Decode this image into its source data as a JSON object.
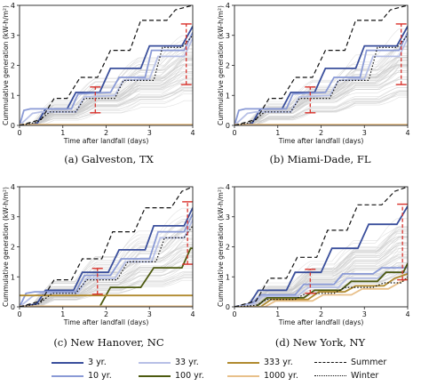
{
  "panels": [
    {
      "caption": "(a) Galveston, TX",
      "ylabel": "Cummulative generation (kW-h/m²)",
      "xlabel": "Time after landfall (days)",
      "chart_data": {
        "type": "line",
        "xlim": [
          0,
          4
        ],
        "ylim": [
          0,
          4
        ],
        "xticks": [
          "0",
          "1",
          "2",
          "3",
          "4"
        ],
        "yticks": [
          "0",
          "1",
          "2",
          "3",
          "4"
        ],
        "series": [
          {
            "name": "3 yr.",
            "style": "solid",
            "color": "#3a4f9c",
            "x": [
              0,
              0.4,
              0.6,
              1.1,
              1.3,
              1.85,
              2.1,
              2.8,
              3.0,
              3.75,
              4.0
            ],
            "y": [
              0,
              0.05,
              0.55,
              0.55,
              1.1,
              1.1,
              1.9,
              1.9,
              2.65,
              2.65,
              3.3
            ]
          },
          {
            "name": "10 yr.",
            "style": "solid",
            "color": "#8a9ad6",
            "x": [
              0,
              0.1,
              0.25,
              1.2,
              1.35,
              2.1,
              2.3,
              2.9,
              3.05,
              3.8,
              4.0
            ],
            "y": [
              0,
              0.5,
              0.55,
              0.55,
              1.05,
              1.1,
              1.6,
              1.6,
              2.5,
              2.5,
              3.1
            ]
          },
          {
            "name": "33 yr.",
            "style": "solid",
            "color": "#b7c0e6",
            "x": [
              0,
              0.3,
              0.5,
              1.3,
              1.5,
              2.2,
              2.4,
              3.0,
              3.2,
              3.8,
              4.0
            ],
            "y": [
              0,
              0.4,
              0.45,
              0.45,
              0.95,
              1.0,
              1.5,
              1.55,
              2.3,
              2.3,
              2.9
            ]
          },
          {
            "name": "1000 yr.",
            "style": "solid",
            "color": "#e8c08a",
            "x": [
              0,
              4.0
            ],
            "y": [
              0.03,
              0.03
            ]
          },
          {
            "name": "Summer",
            "style": "dashed",
            "color": "#111111",
            "x": [
              0,
              0.5,
              0.8,
              1.1,
              1.4,
              1.8,
              2.1,
              2.55,
              2.8,
              3.4,
              3.6,
              4.0
            ],
            "y": [
              0,
              0.2,
              0.9,
              0.9,
              1.6,
              1.6,
              2.5,
              2.5,
              3.5,
              3.5,
              3.85,
              4.0
            ]
          },
          {
            "name": "Winter",
            "style": "dotted",
            "color": "#111111",
            "x": [
              0,
              0.4,
              0.7,
              1.3,
              1.5,
              2.2,
              2.4,
              3.1,
              3.3,
              3.75,
              4.0
            ],
            "y": [
              0,
              0.1,
              0.45,
              0.45,
              0.9,
              0.9,
              1.5,
              1.5,
              2.6,
              2.6,
              3.0
            ]
          }
        ],
        "error_bars": [
          {
            "x": 1.75,
            "y_low": 0.42,
            "y_high": 1.28
          },
          {
            "x": 3.85,
            "y_low": 1.36,
            "y_high": 3.38
          }
        ]
      }
    },
    {
      "caption": "(b) Miami-Dade, FL",
      "ylabel": "Cummulative generation (kW-h/m²)",
      "xlabel": "Time after landfall (days)",
      "chart_data": {
        "type": "line",
        "xlim": [
          0,
          4
        ],
        "ylim": [
          0,
          4
        ],
        "xticks": [
          "0",
          "1",
          "2",
          "3",
          "4"
        ],
        "yticks": [
          "0",
          "1",
          "2",
          "3",
          "4"
        ],
        "series": [
          {
            "name": "3 yr.",
            "style": "solid",
            "color": "#3a4f9c",
            "x": [
              0,
              0.4,
              0.6,
              1.1,
              1.3,
              1.85,
              2.1,
              2.8,
              3.0,
              3.75,
              4.0
            ],
            "y": [
              0,
              0.05,
              0.55,
              0.55,
              1.1,
              1.1,
              1.9,
              1.9,
              2.65,
              2.65,
              3.3
            ]
          },
          {
            "name": "10 yr.",
            "style": "solid",
            "color": "#8a9ad6",
            "x": [
              0,
              0.1,
              0.25,
              1.2,
              1.35,
              2.1,
              2.3,
              2.9,
              3.05,
              3.8,
              4.0
            ],
            "y": [
              0,
              0.5,
              0.55,
              0.55,
              1.05,
              1.1,
              1.6,
              1.6,
              2.5,
              2.5,
              3.1
            ]
          },
          {
            "name": "33 yr.",
            "style": "solid",
            "color": "#b7c0e6",
            "x": [
              0,
              0.3,
              0.5,
              1.3,
              1.5,
              2.2,
              2.4,
              3.0,
              3.2,
              3.8,
              4.0
            ],
            "y": [
              0,
              0.4,
              0.45,
              0.45,
              0.95,
              1.0,
              1.5,
              1.55,
              2.3,
              2.3,
              2.9
            ]
          },
          {
            "name": "1000 yr.",
            "style": "solid",
            "color": "#e8c08a",
            "x": [
              0,
              4.0
            ],
            "y": [
              0.03,
              0.03
            ]
          },
          {
            "name": "Summer",
            "style": "dashed",
            "color": "#111111",
            "x": [
              0,
              0.5,
              0.8,
              1.1,
              1.4,
              1.8,
              2.1,
              2.55,
              2.8,
              3.4,
              3.6,
              4.0
            ],
            "y": [
              0,
              0.2,
              0.9,
              0.9,
              1.6,
              1.6,
              2.5,
              2.5,
              3.5,
              3.5,
              3.85,
              4.0
            ]
          },
          {
            "name": "Winter",
            "style": "dotted",
            "color": "#111111",
            "x": [
              0,
              0.4,
              0.7,
              1.3,
              1.5,
              2.2,
              2.4,
              3.1,
              3.3,
              3.75,
              4.0
            ],
            "y": [
              0,
              0.1,
              0.45,
              0.45,
              0.9,
              0.9,
              1.5,
              1.5,
              2.6,
              2.6,
              3.0
            ]
          }
        ],
        "error_bars": [
          {
            "x": 1.75,
            "y_low": 0.42,
            "y_high": 1.28
          },
          {
            "x": 3.85,
            "y_low": 1.36,
            "y_high": 3.38
          }
        ]
      }
    },
    {
      "caption": "(c) New Hanover, NC",
      "ylabel": "Cummulative generation (kW-h/m²)",
      "xlabel": "Time after landfall (days)",
      "chart_data": {
        "type": "line",
        "xlim": [
          0,
          4
        ],
        "ylim": [
          0,
          4
        ],
        "xticks": [
          "0",
          "1",
          "2",
          "3",
          "4"
        ],
        "yticks": [
          "0",
          "1",
          "2",
          "3",
          "4"
        ],
        "series": [
          {
            "name": "3 yr.",
            "style": "solid",
            "color": "#3a4f9c",
            "x": [
              0,
              0.4,
              0.6,
              1.25,
              1.45,
              2.05,
              2.3,
              2.9,
              3.1,
              3.8,
              4.0
            ],
            "y": [
              0,
              0.1,
              0.55,
              0.55,
              1.15,
              1.15,
              1.9,
              1.9,
              2.7,
              2.7,
              3.3
            ]
          },
          {
            "name": "10 yr.",
            "style": "solid",
            "color": "#8a9ad6",
            "x": [
              0,
              0.15,
              0.35,
              1.3,
              1.5,
              2.1,
              2.35,
              3.0,
              3.2,
              3.8,
              4.0
            ],
            "y": [
              0,
              0.45,
              0.5,
              0.5,
              1.05,
              1.05,
              1.6,
              1.6,
              2.5,
              2.5,
              3.1
            ]
          },
          {
            "name": "33 yr.",
            "style": "solid",
            "color": "#b7c0e6",
            "x": [
              0,
              0.3,
              0.5,
              1.35,
              1.55,
              2.2,
              2.45,
              3.05,
              3.25,
              3.8,
              4.0
            ],
            "y": [
              0,
              0.35,
              0.45,
              0.45,
              0.95,
              0.95,
              1.5,
              1.5,
              2.3,
              2.3,
              2.9
            ]
          },
          {
            "name": "100 yr.",
            "style": "solid",
            "color": "#4d5a10",
            "x": [
              0,
              1.85,
              2.1,
              2.8,
              3.1,
              3.75,
              3.95,
              4.0
            ],
            "y": [
              0,
              0,
              0.65,
              0.65,
              1.3,
              1.3,
              1.95,
              1.95
            ]
          },
          {
            "name": "333 yr.",
            "style": "solid",
            "color": "#b08a2e",
            "x": [
              0,
              4.0
            ],
            "y": [
              0.38,
              0.38
            ]
          },
          {
            "name": "1000 yr.",
            "style": "solid",
            "color": "#e8c08a",
            "x": [
              0,
              4.0
            ],
            "y": [
              0.02,
              0.02
            ]
          },
          {
            "name": "Summer",
            "style": "dashed",
            "color": "#111111",
            "x": [
              0,
              0.5,
              0.8,
              1.2,
              1.45,
              1.9,
              2.15,
              2.65,
              2.9,
              3.5,
              3.75,
              4.0
            ],
            "y": [
              0,
              0.2,
              0.9,
              0.9,
              1.6,
              1.6,
              2.5,
              2.5,
              3.3,
              3.3,
              3.85,
              4.0
            ]
          },
          {
            "name": "Winter",
            "style": "dotted",
            "color": "#111111",
            "x": [
              0,
              0.45,
              0.75,
              1.3,
              1.55,
              2.25,
              2.5,
              3.15,
              3.35,
              3.8,
              4.0
            ],
            "y": [
              0,
              0.1,
              0.45,
              0.45,
              0.9,
              0.9,
              1.5,
              1.5,
              2.3,
              2.3,
              2.7
            ]
          }
        ],
        "error_bars": [
          {
            "x": 1.8,
            "y_low": 0.42,
            "y_high": 1.28
          },
          {
            "x": 3.88,
            "y_low": 1.42,
            "y_high": 3.5
          }
        ]
      }
    },
    {
      "caption": "(d) New York, NY",
      "ylabel": "Cummulative generation (kW-h/m²)",
      "xlabel": "Time after landfall (days)",
      "chart_data": {
        "type": "line",
        "xlim": [
          0,
          4
        ],
        "ylim": [
          0,
          4
        ],
        "xticks": [
          "0",
          "1",
          "2",
          "3",
          "4"
        ],
        "yticks": [
          "0",
          "1",
          "2",
          "3",
          "4"
        ],
        "series": [
          {
            "name": "3 yr.",
            "style": "solid",
            "color": "#3a4f9c",
            "x": [
              0,
              0.35,
              0.55,
              1.2,
              1.4,
              2.0,
              2.25,
              2.85,
              3.1,
              3.75,
              4.0
            ],
            "y": [
              0,
              0.1,
              0.55,
              0.55,
              1.15,
              1.15,
              1.95,
              1.95,
              2.75,
              2.75,
              3.35
            ]
          },
          {
            "name": "10 yr.",
            "style": "solid",
            "color": "#8a9ad6",
            "x": [
              0,
              0.4,
              0.6,
              1.4,
              1.6,
              2.3,
              2.5,
              3.2,
              3.4,
              4.0
            ],
            "y": [
              0,
              0.1,
              0.4,
              0.4,
              0.75,
              0.75,
              1.1,
              1.1,
              1.3,
              1.3
            ]
          },
          {
            "name": "33 yr.",
            "style": "solid",
            "color": "#b7c0e6",
            "x": [
              0,
              0.45,
              0.65,
              1.45,
              1.7,
              2.4,
              2.6,
              3.3,
              3.5,
              4.0
            ],
            "y": [
              0,
              0.1,
              0.35,
              0.35,
              0.65,
              0.65,
              0.95,
              0.95,
              1.15,
              1.15
            ]
          },
          {
            "name": "100 yr.",
            "style": "solid",
            "color": "#4d5a10",
            "x": [
              0,
              0.5,
              0.75,
              1.6,
              1.85,
              2.45,
              2.7,
              3.3,
              3.5,
              3.9,
              4.0
            ],
            "y": [
              0,
              0,
              0.3,
              0.3,
              0.55,
              0.55,
              0.85,
              0.85,
              1.15,
              1.15,
              1.45
            ]
          },
          {
            "name": "333 yr.",
            "style": "solid",
            "color": "#b08a2e",
            "x": [
              0,
              0.6,
              0.85,
              1.7,
              1.95,
              2.55,
              2.8,
              3.45,
              3.7,
              4.0
            ],
            "y": [
              0,
              0,
              0.25,
              0.25,
              0.5,
              0.5,
              0.7,
              0.7,
              0.95,
              1.1
            ]
          },
          {
            "name": "1000 yr.",
            "style": "solid",
            "color": "#e8c08a",
            "x": [
              0,
              0.7,
              0.95,
              1.8,
              2.05,
              2.7,
              2.95,
              3.55,
              3.8,
              4.0
            ],
            "y": [
              0,
              0,
              0.2,
              0.2,
              0.4,
              0.4,
              0.6,
              0.6,
              0.8,
              0.95
            ]
          },
          {
            "name": "Summer",
            "style": "dashed",
            "color": "#111111",
            "x": [
              0,
              0.5,
              0.8,
              1.2,
              1.45,
              1.9,
              2.15,
              2.6,
              2.85,
              3.4,
              3.7,
              4.0
            ],
            "y": [
              0,
              0.2,
              0.95,
              0.95,
              1.65,
              1.65,
              2.55,
              2.55,
              3.4,
              3.4,
              3.85,
              4.0
            ]
          },
          {
            "name": "Winter",
            "style": "dotted",
            "color": "#111111",
            "x": [
              0,
              0.5,
              0.75,
              1.4,
              1.65,
              2.3,
              2.55,
              3.2,
              3.45,
              3.85,
              4.0
            ],
            "y": [
              0,
              0.05,
              0.25,
              0.25,
              0.45,
              0.45,
              0.65,
              0.65,
              0.8,
              0.8,
              1.0
            ]
          }
        ],
        "error_bars": [
          {
            "x": 1.75,
            "y_low": 0.45,
            "y_high": 1.25
          },
          {
            "x": 3.88,
            "y_low": 0.9,
            "y_high": 3.42
          }
        ]
      }
    }
  ],
  "colors": {
    "error_bar": "#d9312b",
    "samples": "#c9c9c9"
  },
  "legend": {
    "items": [
      {
        "label": "3 yr.",
        "style": "solid",
        "color": "#3a4f9c"
      },
      {
        "label": "33 yr.",
        "style": "solid",
        "color": "#b7c0e6"
      },
      {
        "label": "333 yr.",
        "style": "solid",
        "color": "#b08a2e"
      },
      {
        "label": "Summer",
        "style": "dashed",
        "color": "#111111"
      },
      {
        "label": "10 yr.",
        "style": "solid",
        "color": "#8a9ad6"
      },
      {
        "label": "100 yr.",
        "style": "solid",
        "color": "#4d5a10"
      },
      {
        "label": "1000 yr.",
        "style": "solid",
        "color": "#e8c08a"
      },
      {
        "label": "Winter",
        "style": "dotted",
        "color": "#111111"
      }
    ]
  }
}
